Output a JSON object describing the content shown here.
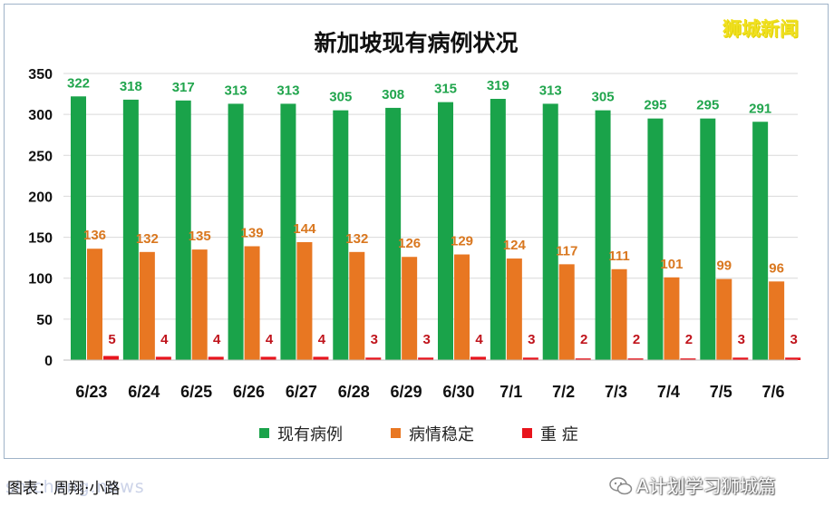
{
  "watermark_top": "狮城新闻",
  "caption": "图表：周翔·小路",
  "caption_watermark": "shicheng.news",
  "account": "A计划学习狮城篇",
  "colors": {
    "series_existing": "#1aa34a",
    "series_stable": "#e87722",
    "series_severe": "#e8141c",
    "label_existing": "#21a54d",
    "label_stable": "#d9771f",
    "label_severe": "#c0141c"
  },
  "chart_data": {
    "type": "bar",
    "title": "新加坡现有病例状况",
    "categories": [
      "6/23",
      "6/24",
      "6/25",
      "6/26",
      "6/27",
      "6/28",
      "6/29",
      "6/30",
      "7/1",
      "7/2",
      "7/3",
      "7/4",
      "7/5",
      "7/6"
    ],
    "series": [
      {
        "name": "现有病例",
        "values": [
          322,
          318,
          317,
          313,
          313,
          305,
          308,
          315,
          319,
          313,
          305,
          295,
          295,
          291
        ]
      },
      {
        "name": "病情稳定",
        "values": [
          136,
          132,
          135,
          139,
          144,
          132,
          126,
          129,
          124,
          117,
          111,
          101,
          99,
          96
        ]
      },
      {
        "name": "重 症",
        "values": [
          5,
          4,
          4,
          4,
          4,
          3,
          3,
          4,
          3,
          2,
          2,
          2,
          3,
          3
        ]
      }
    ],
    "yticks": [
      0,
      50,
      100,
      150,
      200,
      250,
      300,
      350
    ],
    "ylim": [
      0,
      350
    ],
    "grid": true,
    "legend": "bottom",
    "data_labels": true
  }
}
